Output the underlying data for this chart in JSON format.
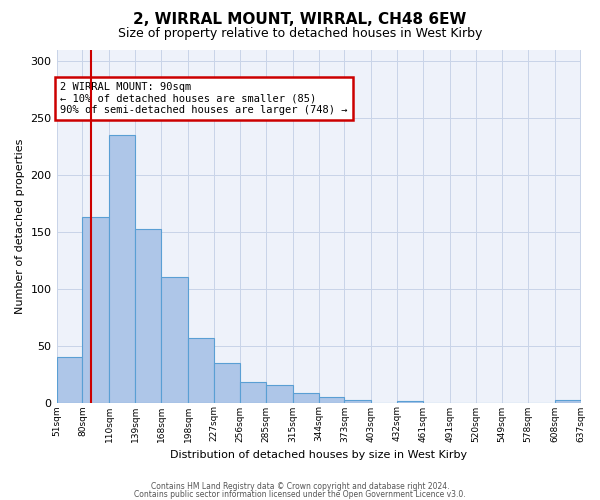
{
  "title": "2, WIRRAL MOUNT, WIRRAL, CH48 6EW",
  "subtitle": "Size of property relative to detached houses in West Kirby",
  "xlabel": "Distribution of detached houses by size in West Kirby",
  "ylabel": "Number of detached properties",
  "bin_labels": [
    "51sqm",
    "80sqm",
    "110sqm",
    "139sqm",
    "168sqm",
    "198sqm",
    "227sqm",
    "256sqm",
    "285sqm",
    "315sqm",
    "344sqm",
    "373sqm",
    "403sqm",
    "432sqm",
    "461sqm",
    "491sqm",
    "520sqm",
    "549sqm",
    "578sqm",
    "608sqm",
    "637sqm"
  ],
  "bin_edges": [
    51,
    80,
    110,
    139,
    168,
    198,
    227,
    256,
    285,
    315,
    344,
    373,
    403,
    432,
    461,
    491,
    520,
    549,
    578,
    608,
    637
  ],
  "bar_heights": [
    40,
    163,
    235,
    153,
    110,
    57,
    35,
    18,
    15,
    8,
    5,
    2,
    0,
    1,
    0,
    0,
    0,
    0,
    0,
    2
  ],
  "bar_color": "#aec6e8",
  "bar_edge_color": "#5a9fd4",
  "property_line_x": 90,
  "property_line_color": "#cc0000",
  "annotation_title": "2 WIRRAL MOUNT: 90sqm",
  "annotation_line1": "← 10% of detached houses are smaller (85)",
  "annotation_line2": "90% of semi-detached houses are larger (748) →",
  "annotation_box_color": "#cc0000",
  "ylim": [
    0,
    310
  ],
  "yticks": [
    0,
    50,
    100,
    150,
    200,
    250,
    300
  ],
  "footer1": "Contains HM Land Registry data © Crown copyright and database right 2024.",
  "footer2": "Contains public sector information licensed under the Open Government Licence v3.0.",
  "background_color": "#eef2fa",
  "grid_color": "#c8d4e8"
}
